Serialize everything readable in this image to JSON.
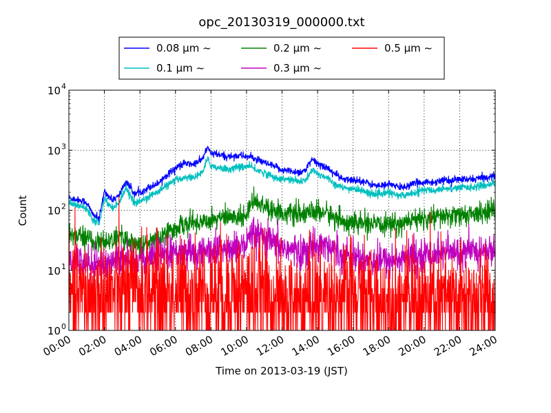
{
  "chart_data": {
    "type": "line",
    "title": "opc_20130319_000000.txt",
    "xlabel": "Time on 2013-03-19 (JST)",
    "ylabel": "Count",
    "x_scale": "time",
    "y_scale": "log",
    "xlim": [
      "2013-03-19 00:00",
      "2013-03-20 00:00"
    ],
    "ylim": [
      1,
      10000
    ],
    "x_tick_labels": [
      "00:00",
      "02:00",
      "04:00",
      "06:00",
      "08:00",
      "10:00",
      "12:00",
      "14:00",
      "16:00",
      "18:00",
      "20:00",
      "22:00",
      "24:00"
    ],
    "y_tick_labels": [
      {
        "base": "10",
        "exp": "0"
      },
      {
        "base": "10",
        "exp": "1"
      },
      {
        "base": "10",
        "exp": "2"
      },
      {
        "base": "10",
        "exp": "3"
      },
      {
        "base": "10",
        "exp": "4"
      }
    ],
    "grid": true,
    "legend_position": "top",
    "hour_ticks": [
      0,
      2,
      4,
      6,
      8,
      10,
      12,
      14,
      16,
      18,
      20,
      22,
      24
    ],
    "series": [
      {
        "name": "0.08 μm ~",
        "color": "#0000ff",
        "x_hours": [
          0,
          0.5,
          1,
          1.3,
          1.7,
          2,
          2.4,
          2.8,
          3.2,
          3.7,
          4,
          4.5,
          5,
          5.5,
          6,
          6.5,
          7,
          7.5,
          7.8,
          8,
          8.3,
          8.7,
          9,
          9.5,
          10,
          10.3,
          10.7,
          11,
          11.5,
          12,
          12.5,
          13,
          13.3,
          13.7,
          14,
          14.5,
          15,
          15.5,
          16,
          16.5,
          17,
          17.5,
          18,
          18.5,
          19,
          19.5,
          20,
          20.5,
          21,
          21.5,
          22,
          22.5,
          23,
          23.5,
          24
        ],
        "values": [
          160,
          150,
          135,
          90,
          70,
          210,
          150,
          170,
          300,
          190,
          200,
          240,
          280,
          390,
          500,
          600,
          580,
          700,
          1100,
          900,
          850,
          800,
          780,
          820,
          790,
          760,
          660,
          620,
          540,
          470,
          450,
          430,
          460,
          700,
          600,
          520,
          400,
          320,
          320,
          310,
          270,
          250,
          280,
          240,
          250,
          280,
          300,
          290,
          320,
          310,
          330,
          320,
          340,
          350,
          380
        ],
        "noise": 0.05,
        "floor": false
      },
      {
        "name": "0.1 μm ~",
        "color": "#00bfbf",
        "x_hours": [
          0,
          0.5,
          1,
          1.3,
          1.7,
          2,
          2.4,
          2.8,
          3.2,
          3.7,
          4,
          4.5,
          5,
          5.5,
          6,
          6.5,
          7,
          7.5,
          7.8,
          8,
          8.3,
          8.7,
          9,
          9.5,
          10,
          10.3,
          10.7,
          11,
          11.5,
          12,
          12.5,
          13,
          13.3,
          13.7,
          14,
          14.5,
          15,
          15.5,
          16,
          16.5,
          17,
          17.5,
          18,
          18.5,
          19,
          19.5,
          20,
          20.5,
          21,
          21.5,
          22,
          22.5,
          23,
          23.5,
          24
        ],
        "values": [
          130,
          120,
          110,
          75,
          60,
          160,
          110,
          130,
          240,
          130,
          140,
          170,
          200,
          260,
          310,
          360,
          350,
          420,
          700,
          560,
          520,
          500,
          480,
          520,
          540,
          520,
          450,
          420,
          360,
          330,
          320,
          300,
          310,
          460,
          400,
          360,
          270,
          230,
          230,
          210,
          190,
          180,
          200,
          175,
          180,
          200,
          220,
          210,
          230,
          230,
          240,
          240,
          250,
          260,
          290
        ],
        "noise": 0.05,
        "floor": false
      },
      {
        "name": "0.2 μm ~",
        "color": "#008000",
        "x_hours": [
          0,
          0.5,
          1,
          1.5,
          2,
          2.5,
          3,
          3.5,
          4,
          4.5,
          5,
          5.5,
          6,
          6.5,
          7,
          7.5,
          8,
          8.5,
          9,
          9.5,
          10,
          10.3,
          10.7,
          11,
          11.5,
          12,
          12.5,
          13,
          13.5,
          14,
          14.5,
          15,
          15.5,
          16,
          16.5,
          17,
          17.5,
          18,
          18.5,
          19,
          19.5,
          20,
          20.5,
          21,
          21.5,
          22,
          22.5,
          23,
          23.5,
          24
        ],
        "values": [
          40,
          38,
          35,
          30,
          30,
          32,
          36,
          30,
          25,
          28,
          35,
          42,
          50,
          58,
          62,
          65,
          72,
          75,
          75,
          78,
          80,
          160,
          130,
          120,
          105,
          90,
          88,
          85,
          90,
          95,
          90,
          75,
          65,
          60,
          62,
          58,
          55,
          60,
          58,
          65,
          68,
          72,
          75,
          78,
          80,
          82,
          85,
          88,
          92,
          100
        ],
        "noise": 0.14,
        "floor": false
      },
      {
        "name": "0.3 μm ~",
        "color": "#bf00bf",
        "x_hours": [
          0,
          0.5,
          1,
          1.5,
          2,
          2.5,
          3,
          3.5,
          4,
          4.5,
          5,
          5.5,
          6,
          6.5,
          7,
          7.5,
          8,
          8.5,
          9,
          9.5,
          10,
          10.3,
          10.7,
          11,
          11.5,
          12,
          12.5,
          13,
          13.5,
          14,
          14.5,
          15,
          15.5,
          16,
          16.5,
          17,
          17.5,
          18,
          18.5,
          19,
          19.5,
          20,
          20.5,
          21,
          21.5,
          22,
          22.5,
          23,
          23.5,
          24
        ],
        "values": [
          15,
          14,
          14,
          13,
          12,
          14,
          17,
          15,
          15,
          16,
          18,
          19,
          20,
          20,
          19,
          20,
          21,
          22,
          22,
          23,
          25,
          40,
          35,
          32,
          28,
          24,
          22,
          20,
          22,
          30,
          26,
          22,
          18,
          17,
          16,
          15,
          14,
          15,
          15,
          16,
          17,
          18,
          19,
          20,
          20,
          19,
          20,
          20,
          21,
          22
        ],
        "noise": 0.22,
        "floor": false
      },
      {
        "name": "0.5 μm ~",
        "color": "#ff0000",
        "x_hours": [
          0,
          2,
          4,
          6,
          8,
          10,
          11,
          12,
          14,
          16,
          18,
          20,
          22,
          24
        ],
        "values": [
          3.5,
          4,
          4.5,
          4,
          4.2,
          4.5,
          4,
          2.5,
          3.5,
          3.5,
          3,
          3,
          3,
          3
        ],
        "noise": 0.45,
        "floor": true
      }
    ]
  }
}
